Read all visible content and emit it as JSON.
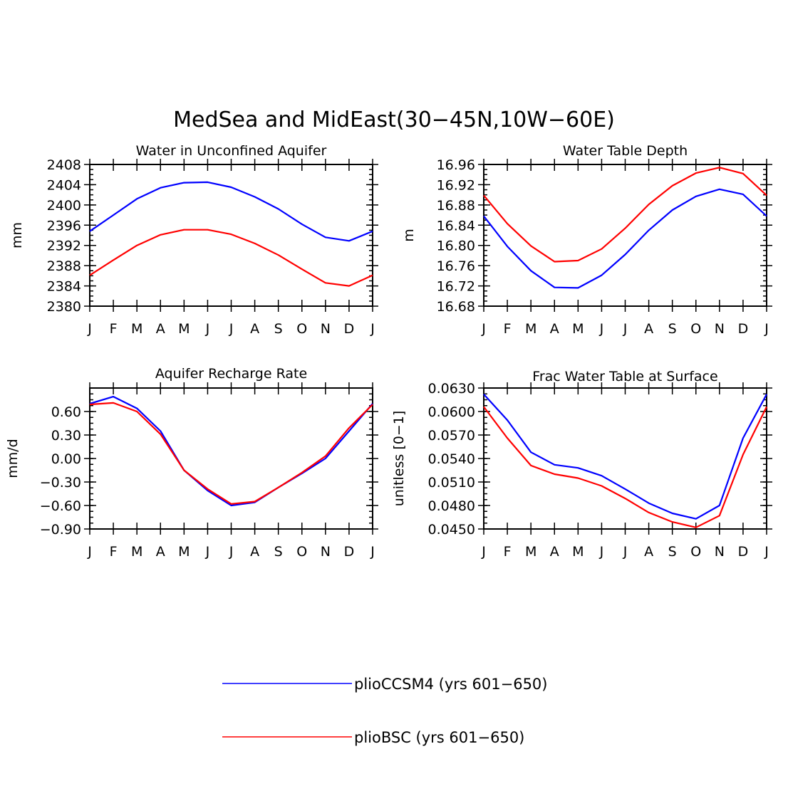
{
  "title": "MedSea and MidEast(30−45N,10W−60E)",
  "colors": {
    "pliocsm4": "#0000ff",
    "pliobsc": "#ff0000",
    "axis": "#000000"
  },
  "legend": [
    {
      "label": "plioCCSM4 (yrs 601−650)",
      "color": "#0000ff"
    },
    {
      "label": "plioBSC (yrs 601−650)",
      "color": "#ff0000"
    }
  ],
  "chart_data": [
    {
      "type": "line",
      "title": "Water in Unconfined Aquifer",
      "xlabel": "",
      "ylabel": "mm",
      "categories": [
        "J",
        "F",
        "M",
        "A",
        "M",
        "J",
        "J",
        "A",
        "S",
        "O",
        "N",
        "D",
        "J"
      ],
      "ylim": [
        2380,
        2408
      ],
      "yticks": [
        "2380",
        "2384",
        "2388",
        "2392",
        "2396",
        "2400",
        "2404",
        "2408"
      ],
      "series": [
        {
          "name": "plioCCSM4 (yrs 601−650)",
          "color": "#0000ff",
          "values": [
            2394.8,
            2398.0,
            2401.2,
            2403.4,
            2404.4,
            2404.5,
            2403.5,
            2401.6,
            2399.2,
            2396.2,
            2393.6,
            2392.9,
            2394.8
          ]
        },
        {
          "name": "plioBSC (yrs 601−650)",
          "color": "#ff0000",
          "values": [
            2386.1,
            2389.1,
            2392.0,
            2394.1,
            2395.1,
            2395.1,
            2394.2,
            2392.4,
            2390.1,
            2387.3,
            2384.6,
            2384.0,
            2386.1
          ]
        }
      ]
    },
    {
      "type": "line",
      "title": "Water Table Depth",
      "xlabel": "",
      "ylabel": "m",
      "categories": [
        "J",
        "F",
        "M",
        "A",
        "M",
        "J",
        "J",
        "A",
        "S",
        "O",
        "N",
        "D",
        "J"
      ],
      "ylim": [
        16.68,
        16.96
      ],
      "yticks": [
        "16.68",
        "16.72",
        "16.76",
        "16.80",
        "16.84",
        "16.88",
        "16.92",
        "16.96"
      ],
      "series": [
        {
          "name": "plioCCSM4 (yrs 601−650)",
          "color": "#0000ff",
          "values": [
            16.858,
            16.798,
            16.75,
            16.717,
            16.716,
            16.741,
            16.782,
            16.83,
            16.87,
            16.897,
            16.911,
            16.901,
            16.858
          ]
        },
        {
          "name": "plioBSC (yrs 601−650)",
          "color": "#ff0000",
          "values": [
            16.899,
            16.843,
            16.799,
            16.768,
            16.77,
            16.793,
            16.834,
            16.881,
            16.918,
            16.943,
            16.954,
            16.942,
            16.899
          ]
        }
      ]
    },
    {
      "type": "line",
      "title": "Aquifer Recharge Rate",
      "xlabel": "",
      "ylabel": "mm/d",
      "categories": [
        "J",
        "F",
        "M",
        "A",
        "M",
        "J",
        "J",
        "A",
        "S",
        "O",
        "N",
        "D",
        "J"
      ],
      "ylim": [
        -0.9,
        0.9
      ],
      "yticks": [
        "−0.90",
        "−0.60",
        "−0.30",
        "0.00",
        "0.30",
        "0.60"
      ],
      "series": [
        {
          "name": "plioCCSM4 (yrs 601−650)",
          "color": "#0000ff",
          "values": [
            0.7,
            0.79,
            0.64,
            0.35,
            -0.15,
            -0.41,
            -0.6,
            -0.56,
            -0.37,
            -0.19,
            0.0,
            0.35,
            0.7
          ]
        },
        {
          "name": "plioBSC (yrs 601−650)",
          "color": "#ff0000",
          "values": [
            0.69,
            0.71,
            0.6,
            0.31,
            -0.15,
            -0.39,
            -0.58,
            -0.55,
            -0.37,
            -0.18,
            0.03,
            0.39,
            0.69
          ]
        }
      ]
    },
    {
      "type": "line",
      "title": "Frac Water Table at Surface",
      "xlabel": "",
      "ylabel": "unitless [0−1]",
      "categories": [
        "J",
        "F",
        "M",
        "A",
        "M",
        "J",
        "J",
        "A",
        "S",
        "O",
        "N",
        "D",
        "J"
      ],
      "ylim": [
        0.045,
        0.063
      ],
      "yticks": [
        "0.0450",
        "0.0480",
        "0.0510",
        "0.0540",
        "0.0570",
        "0.0600",
        "0.0630"
      ],
      "series": [
        {
          "name": "plioCCSM4 (yrs 601−650)",
          "color": "#0000ff",
          "values": [
            0.0622,
            0.0589,
            0.0548,
            0.0532,
            0.0528,
            0.0518,
            0.0501,
            0.0483,
            0.047,
            0.0463,
            0.048,
            0.0566,
            0.0622
          ]
        },
        {
          "name": "plioBSC (yrs 601−650)",
          "color": "#ff0000",
          "values": [
            0.0606,
            0.0566,
            0.0531,
            0.052,
            0.0515,
            0.0505,
            0.0489,
            0.0471,
            0.0459,
            0.0452,
            0.0467,
            0.0545,
            0.0606
          ]
        }
      ]
    }
  ]
}
